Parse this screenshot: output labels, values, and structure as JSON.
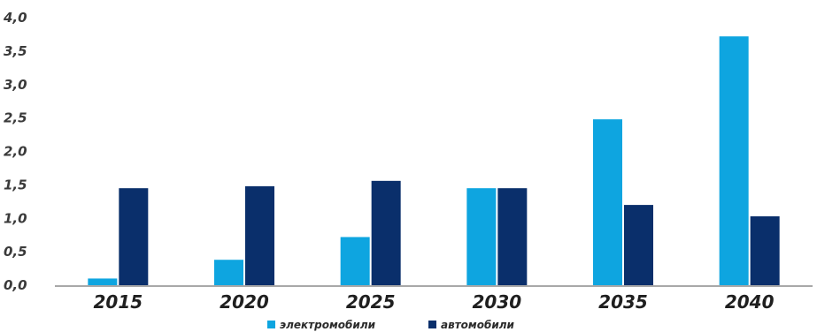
{
  "chart_data": {
    "type": "bar",
    "categories": [
      "2015",
      "2020",
      "2025",
      "2030",
      "2035",
      "2040"
    ],
    "series": [
      {
        "name": "электромобили",
        "color": "#0ea5e0",
        "values": [
          0.1,
          0.38,
          0.72,
          1.45,
          2.48,
          3.72
        ]
      },
      {
        "name": "автомобили",
        "color": "#0a2f6b",
        "values": [
          1.45,
          1.48,
          1.56,
          1.45,
          1.2,
          1.03
        ]
      }
    ],
    "y_ticks": [
      "0,0",
      "0,5",
      "1,0",
      "1,5",
      "2,0",
      "2,5",
      "3,0",
      "3,5",
      "4,0"
    ],
    "ylim": [
      0,
      4
    ],
    "grid": false,
    "legend_position": "bottom-center",
    "title": "",
    "xlabel": "",
    "ylabel": ""
  }
}
